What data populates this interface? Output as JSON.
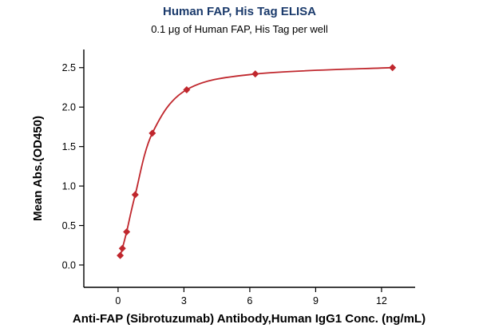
{
  "chart": {
    "title": "Human FAP, His Tag ELISA",
    "subtitle": "0.1 μg of Human FAP, His Tag per well",
    "xlabel": "Anti-FAP (Sibrotuzumab) Antibody,Human IgG1 Conc. (ng/mL)",
    "ylabel": "Mean Abs.(OD450)"
  },
  "chart_data": {
    "type": "scatter",
    "title": "Human FAP, His Tag ELISA",
    "subtitle": "0.1 μg of Human FAP, His Tag per well",
    "xlabel": "Anti-FAP (Sibrotuzumab) Antibody,Human IgG1 Conc. (ng/mL)",
    "ylabel": "Mean Abs.(OD450)",
    "x": [
      0.098,
      0.195,
      0.39,
      0.78,
      1.56,
      3.125,
      6.25,
      12.5
    ],
    "y": [
      0.12,
      0.21,
      0.42,
      0.89,
      1.67,
      2.22,
      2.42,
      2.5
    ],
    "xticks": [
      0,
      3,
      6,
      9,
      12
    ],
    "yticks": [
      0.0,
      0.5,
      1.0,
      1.5,
      2.0,
      2.5
    ],
    "xlim": [
      -1.56,
      13.53
    ],
    "ylim": [
      -0.283,
      2.73
    ],
    "grid": false,
    "legend": "none",
    "marker": "diamond",
    "line_color": "#c0272d",
    "marker_color": "#c0272d",
    "axis_color": "#000000"
  }
}
